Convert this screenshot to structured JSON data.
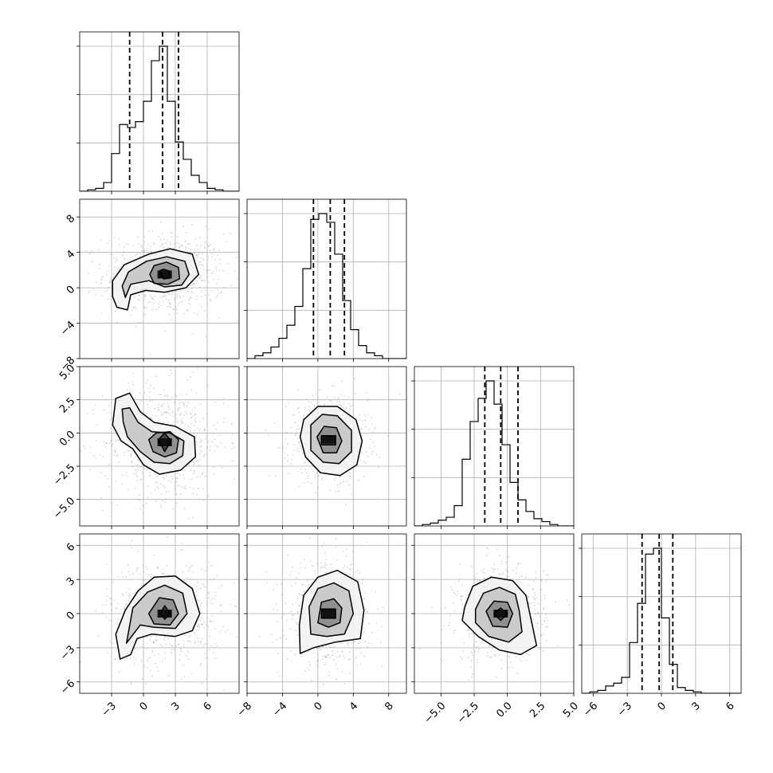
{
  "chart_data": {
    "type": "corner",
    "params": [
      {
        "range": [
          -6,
          9
        ],
        "xticks": [
          -3,
          0,
          3,
          6
        ],
        "quantiles": [
          -1.3,
          1.8,
          3.3
        ],
        "hist": {
          "edges": [
            -6,
            9
          ],
          "bins": 20,
          "counts": [
            0,
            1,
            2,
            6,
            26,
            46,
            44,
            48,
            62,
            90,
            100,
            62,
            34,
            22,
            11,
            6,
            2,
            1,
            0,
            0
          ]
        }
      },
      {
        "range": [
          -8,
          10
        ],
        "yticks": [
          -8,
          -4,
          0,
          4,
          8
        ],
        "xticks": [
          -8,
          -4,
          0,
          4,
          8
        ],
        "quantiles": [
          -0.5,
          1.4,
          3.0
        ],
        "hist": {
          "edges": [
            -8,
            10
          ],
          "bins": 20,
          "counts": [
            0,
            2,
            4,
            8,
            14,
            23,
            36,
            62,
            96,
            100,
            94,
            72,
            40,
            20,
            9,
            4,
            2,
            0,
            0,
            0
          ]
        }
      },
      {
        "range": [
          -7,
          5
        ],
        "yticks": [
          -5.0,
          -2.5,
          0.0,
          2.5,
          5.0
        ],
        "xticks": [
          -5.0,
          -2.5,
          0.0,
          2.5,
          5.0
        ],
        "quantiles": [
          -1.7,
          -0.5,
          0.8
        ],
        "hist": {
          "edges": [
            -7,
            5
          ],
          "bins": 20,
          "counts": [
            0,
            1,
            2,
            4,
            6,
            14,
            46,
            72,
            88,
            100,
            84,
            56,
            30,
            18,
            10,
            5,
            3,
            1,
            0,
            0
          ]
        }
      },
      {
        "range": [
          -7,
          7
        ],
        "yticks": [
          -6,
          -3,
          0,
          3,
          6
        ],
        "xticks": [
          -6,
          -3,
          0,
          3,
          6
        ],
        "quantiles": [
          -1.7,
          -0.2,
          1.0
        ],
        "hist": {
          "edges": [
            -7,
            7
          ],
          "bins": 20,
          "counts": [
            0,
            1,
            2,
            5,
            7,
            11,
            35,
            62,
            96,
            100,
            52,
            20,
            4,
            2,
            1,
            0,
            0,
            0,
            0,
            0
          ]
        }
      }
    ],
    "pairs": [
      {
        "row": 1,
        "col": 0,
        "center": [
          2.0,
          1.5
        ],
        "levels": [
          [
            [
              -2.5,
              -2.2
            ],
            [
              -1.5,
              -2.5
            ],
            [
              -1.2,
              -0.8
            ],
            [
              0.2,
              -0.3
            ],
            [
              2.0,
              -0.5
            ],
            [
              4.0,
              0.0
            ],
            [
              5.2,
              1.5
            ],
            [
              4.6,
              3.8
            ],
            [
              2.5,
              4.4
            ],
            [
              0.5,
              3.8
            ],
            [
              -1.8,
              2.6
            ],
            [
              -2.9,
              0.8
            ],
            [
              -2.9,
              -1.0
            ]
          ],
          [
            [
              -1.7,
              -1.1
            ],
            [
              -1.2,
              0.4
            ],
            [
              0.5,
              0.8
            ],
            [
              2.0,
              0.1
            ],
            [
              3.6,
              0.3
            ],
            [
              4.3,
              1.5
            ],
            [
              3.9,
              3.0
            ],
            [
              2.2,
              3.5
            ],
            [
              0.3,
              3.0
            ],
            [
              -1.4,
              1.8
            ],
            [
              -2.0,
              0.2
            ]
          ],
          [
            [
              0.6,
              1.5
            ],
            [
              1.0,
              0.5
            ],
            [
              2.3,
              0.4
            ],
            [
              3.4,
              1.0
            ],
            [
              3.3,
              2.3
            ],
            [
              2.2,
              2.9
            ],
            [
              1.0,
              2.5
            ]
          ],
          [
            [
              1.5,
              1.9
            ],
            [
              1.9,
              1.0
            ],
            [
              2.5,
              1.1
            ],
            [
              2.4,
              1.9
            ],
            [
              1.9,
              2.1
            ]
          ]
        ]
      },
      {
        "row": 2,
        "col": 0,
        "center": [
          2.0,
          -0.7
        ],
        "levels": [
          [
            [
              -2.6,
              2.6
            ],
            [
              -1.3,
              3.0
            ],
            [
              -0.3,
              1.6
            ],
            [
              1.0,
              0.8
            ],
            [
              3.0,
              0.5
            ],
            [
              4.8,
              -0.3
            ],
            [
              4.9,
              -1.8
            ],
            [
              3.5,
              -2.8
            ],
            [
              1.5,
              -3.1
            ],
            [
              0.0,
              -2.4
            ],
            [
              -1.0,
              -1.2
            ],
            [
              -2.1,
              -0.6
            ],
            [
              -2.9,
              0.6
            ]
          ],
          [
            [
              -2.0,
              1.8
            ],
            [
              -1.3,
              1.9
            ],
            [
              -0.5,
              0.8
            ],
            [
              0.8,
              0.1
            ],
            [
              2.5,
              0.0
            ],
            [
              3.8,
              -0.6
            ],
            [
              3.7,
              -1.7
            ],
            [
              2.5,
              -2.3
            ],
            [
              1.0,
              -2.2
            ],
            [
              -0.3,
              -1.4
            ],
            [
              -1.5,
              -0.3
            ],
            [
              -1.9,
              0.8
            ]
          ],
          [
            [
              0.5,
              -0.5
            ],
            [
              1.2,
              0.0
            ],
            [
              2.5,
              0.1
            ],
            [
              3.3,
              -0.5
            ],
            [
              3.1,
              -1.5
            ],
            [
              2.0,
              -1.8
            ],
            [
              0.9,
              -1.4
            ]
          ],
          [
            [
              1.4,
              -0.5
            ],
            [
              2.0,
              0.0
            ],
            [
              2.6,
              -0.6
            ],
            [
              2.0,
              -1.4
            ]
          ]
        ]
      },
      {
        "row": 3,
        "col": 0,
        "center": [
          2.0,
          0.0
        ],
        "levels": [
          [
            [
              -2.2,
              -4.0
            ],
            [
              -1.2,
              -3.6
            ],
            [
              -0.6,
              -2.2
            ],
            [
              0.8,
              -1.8
            ],
            [
              3.0,
              -2.0
            ],
            [
              4.6,
              -1.5
            ],
            [
              5.3,
              0.0
            ],
            [
              4.6,
              2.2
            ],
            [
              3.0,
              3.3
            ],
            [
              1.0,
              3.2
            ],
            [
              -0.5,
              2.0
            ],
            [
              -1.7,
              0.3
            ],
            [
              -2.6,
              -1.8
            ]
          ],
          [
            [
              -1.6,
              -2.6
            ],
            [
              -0.3,
              -1.0
            ],
            [
              1.0,
              -1.2
            ],
            [
              3.0,
              -1.3
            ],
            [
              4.1,
              0.0
            ],
            [
              3.7,
              1.8
            ],
            [
              2.0,
              2.5
            ],
            [
              0.4,
              1.9
            ],
            [
              -1.0,
              0.5
            ]
          ],
          [
            [
              0.5,
              0.0
            ],
            [
              1.0,
              -0.9
            ],
            [
              2.5,
              -1.0
            ],
            [
              3.3,
              0.0
            ],
            [
              2.8,
              1.2
            ],
            [
              1.5,
              1.4
            ]
          ],
          [
            [
              1.6,
              0.0
            ],
            [
              2.0,
              0.7
            ],
            [
              2.5,
              0.0
            ],
            [
              2.0,
              -0.5
            ]
          ]
        ]
      },
      {
        "row": 2,
        "col": 1,
        "center": [
          1.2,
          -0.5
        ],
        "levels": [
          [
            [
              -1.6,
              1.0
            ],
            [
              0.0,
              2.0
            ],
            [
              2.2,
              2.0
            ],
            [
              4.3,
              1.0
            ],
            [
              5.0,
              -0.6
            ],
            [
              4.4,
              -2.4
            ],
            [
              2.5,
              -3.2
            ],
            [
              0.3,
              -3.0
            ],
            [
              -1.4,
              -1.8
            ],
            [
              -2.0,
              -0.3
            ]
          ],
          [
            [
              -0.8,
              0.6
            ],
            [
              0.5,
              1.4
            ],
            [
              2.2,
              1.3
            ],
            [
              3.8,
              0.2
            ],
            [
              3.8,
              -1.4
            ],
            [
              2.4,
              -2.3
            ],
            [
              0.6,
              -2.2
            ],
            [
              -0.8,
              -1.3
            ]
          ],
          [
            [
              -0.1,
              -0.3
            ],
            [
              0.7,
              0.5
            ],
            [
              2.1,
              0.4
            ],
            [
              2.7,
              -0.6
            ],
            [
              2.1,
              -1.5
            ],
            [
              0.6,
              -1.5
            ]
          ],
          [
            [
              0.4,
              -0.2
            ],
            [
              2.0,
              -0.2
            ],
            [
              2.0,
              -0.9
            ],
            [
              0.4,
              -0.9
            ]
          ]
        ]
      },
      {
        "row": 3,
        "col": 1,
        "center": [
          1.2,
          0.0
        ],
        "levels": [
          [
            [
              -2.0,
              -3.5
            ],
            [
              -0.5,
              -3.0
            ],
            [
              2.0,
              -2.5
            ],
            [
              4.8,
              -2.2
            ],
            [
              5.2,
              0.3
            ],
            [
              4.5,
              2.8
            ],
            [
              2.2,
              3.8
            ],
            [
              0.0,
              3.2
            ],
            [
              -1.6,
              1.6
            ],
            [
              -2.1,
              -1.0
            ]
          ],
          [
            [
              -0.8,
              -1.8
            ],
            [
              1.0,
              -2.0
            ],
            [
              3.0,
              -1.8
            ],
            [
              4.0,
              0.0
            ],
            [
              3.5,
              2.0
            ],
            [
              1.8,
              2.7
            ],
            [
              0.0,
              2.2
            ],
            [
              -1.0,
              0.6
            ]
          ],
          [
            [
              0.0,
              -0.8
            ],
            [
              1.2,
              -1.2
            ],
            [
              2.5,
              -0.8
            ],
            [
              2.7,
              0.5
            ],
            [
              1.8,
              1.3
            ],
            [
              0.4,
              1.0
            ]
          ],
          [
            [
              0.4,
              -0.4
            ],
            [
              2.0,
              -0.4
            ],
            [
              2.0,
              0.4
            ],
            [
              0.4,
              0.4
            ]
          ]
        ]
      },
      {
        "row": 3,
        "col": 2,
        "center": [
          -0.5,
          0.0
        ],
        "levels": [
          [
            [
              -3.2,
              0.6
            ],
            [
              -2.6,
              2.4
            ],
            [
              -1.2,
              3.2
            ],
            [
              0.4,
              2.9
            ],
            [
              1.4,
              1.6
            ],
            [
              1.8,
              -0.6
            ],
            [
              2.2,
              -2.8
            ],
            [
              1.0,
              -3.6
            ],
            [
              -0.6,
              -3.2
            ],
            [
              -2.2,
              -2.0
            ],
            [
              -3.4,
              -0.6
            ]
          ],
          [
            [
              -2.4,
              0.4
            ],
            [
              -1.8,
              1.8
            ],
            [
              -0.6,
              2.3
            ],
            [
              0.6,
              1.7
            ],
            [
              0.9,
              0.2
            ],
            [
              1.1,
              -1.6
            ],
            [
              0.1,
              -2.5
            ],
            [
              -1.4,
              -2.0
            ],
            [
              -2.4,
              -0.8
            ]
          ],
          [
            [
              -1.6,
              0.2
            ],
            [
              -1.0,
              1.1
            ],
            [
              0.0,
              1.0
            ],
            [
              0.4,
              0.0
            ],
            [
              0.0,
              -1.2
            ],
            [
              -1.1,
              -1.1
            ]
          ],
          [
            [
              -1.0,
              0.0
            ],
            [
              -0.5,
              0.5
            ],
            [
              0.0,
              0.0
            ],
            [
              -0.5,
              -0.6
            ]
          ]
        ]
      }
    ]
  }
}
